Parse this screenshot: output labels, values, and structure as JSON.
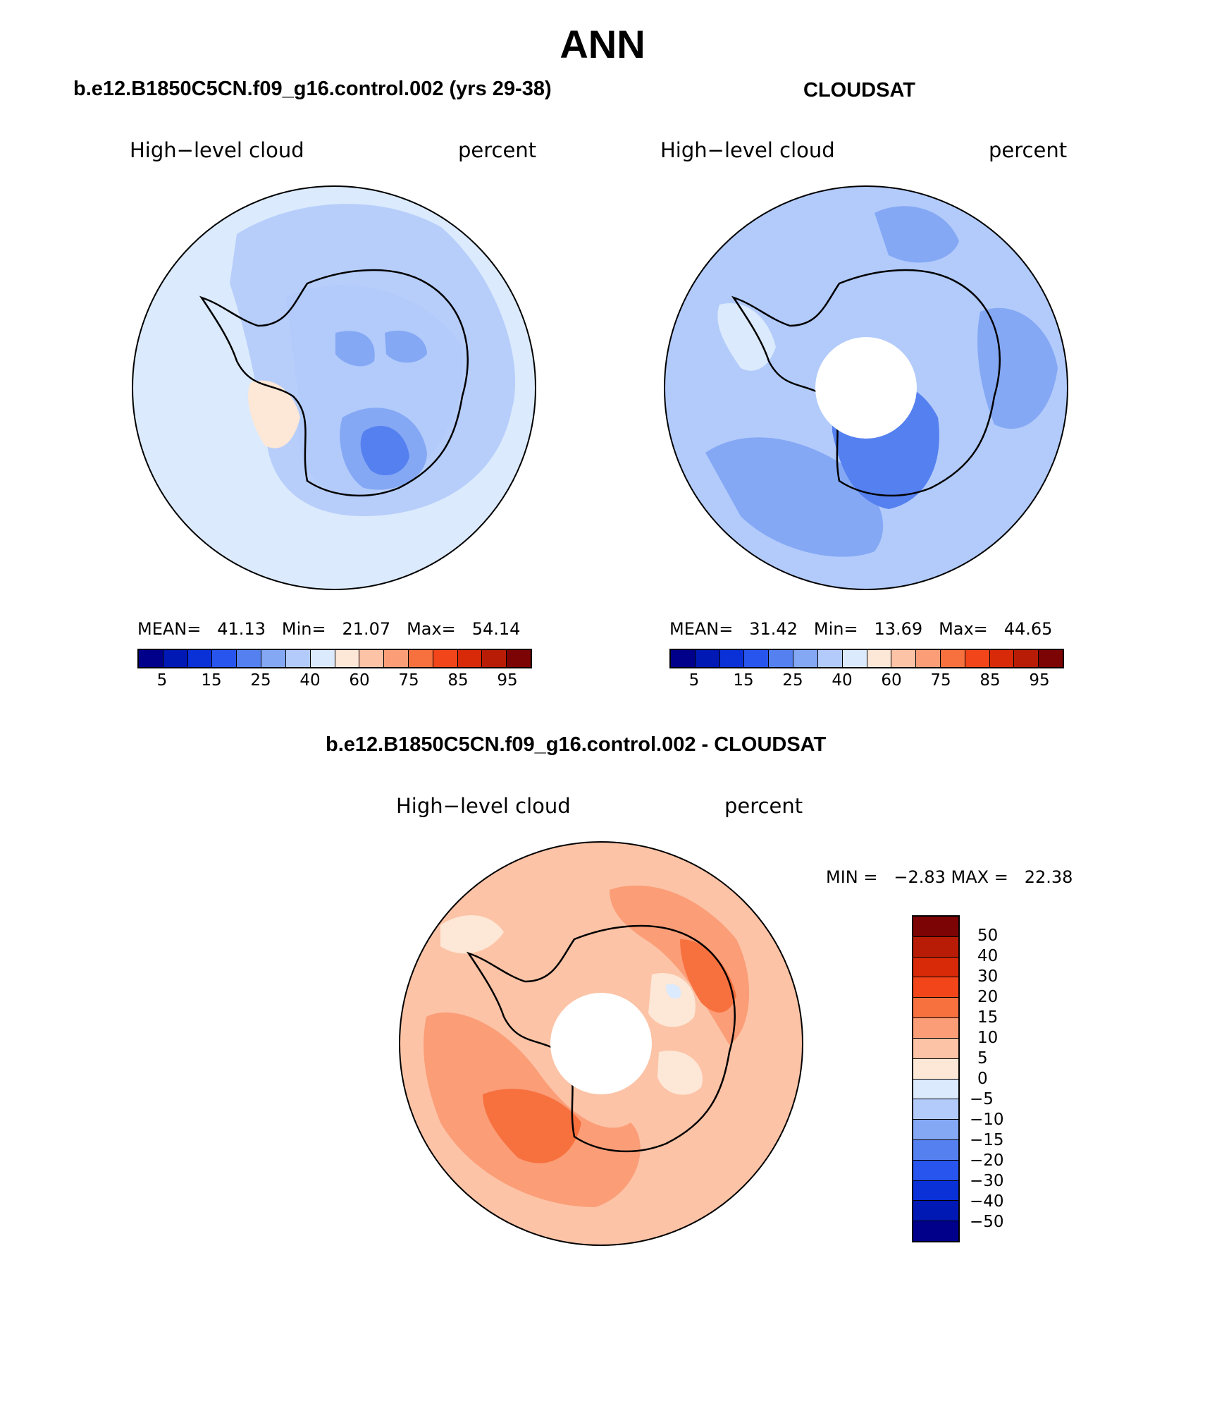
{
  "title": "ANN",
  "palette": {
    "seq_colors": [
      "#00008a",
      "#0018b4",
      "#0a30d8",
      "#2855ee",
      "#5580f0",
      "#85a8f5",
      "#b2cbfb",
      "#dbeafc",
      "#fde7d6",
      "#fcc3a6",
      "#fb9d77",
      "#f7713f",
      "#f2461a",
      "#d82a08",
      "#b81c06",
      "#7d0404"
    ],
    "div_colors": [
      "#00008a",
      "#0018b4",
      "#0a30d8",
      "#2855ee",
      "#5580f0",
      "#85a8f5",
      "#b2cbfb",
      "#dbeafc",
      "#fde7d6",
      "#fcc3a6",
      "#fb9d77",
      "#f7713f",
      "#f2461a",
      "#d82a08",
      "#b81c06",
      "#7d0404"
    ],
    "land_outline": "#000000"
  },
  "panels": [
    {
      "case_title": "b.e12.B1850C5CN.f09_g16.control.002 (yrs 29-38)",
      "variable": "High−level cloud",
      "units": "percent",
      "stats": {
        "mean_label": "MEAN=",
        "mean": "41.13",
        "min_label": "Min=",
        "min": "21.07",
        "max_label": "Max=",
        "max": "54.14"
      },
      "colorbar_ticks": [
        "5",
        "15",
        "25",
        "40",
        "60",
        "75",
        "85",
        "95"
      ],
      "map_base_color": "#dbeafc",
      "polar_hole": false
    },
    {
      "case_title": "CLOUDSAT",
      "variable": "High−level cloud",
      "units": "percent",
      "stats": {
        "mean_label": "MEAN=",
        "mean": "31.42",
        "min_label": "Min=",
        "min": "13.69",
        "max_label": "Max=",
        "max": "44.65"
      },
      "colorbar_ticks": [
        "5",
        "15",
        "25",
        "40",
        "60",
        "75",
        "85",
        "95"
      ],
      "map_base_color": "#b2cbfb",
      "polar_hole": true
    }
  ],
  "diff_panel": {
    "case_title": "b.e12.B1850C5CN.f09_g16.control.002 - CLOUDSAT",
    "variable": "High−level cloud",
    "units": "percent",
    "minmax_text": "MIN =   −2.83 MAX =   22.38",
    "colorbar_ticks": [
      "50",
      "40",
      "30",
      "20",
      "15",
      "10",
      "5",
      "0",
      "−5",
      "−10",
      "−15",
      "−20",
      "−30",
      "−40",
      "−50"
    ],
    "map_base_color": "#fcc3a6",
    "polar_hole": true
  }
}
